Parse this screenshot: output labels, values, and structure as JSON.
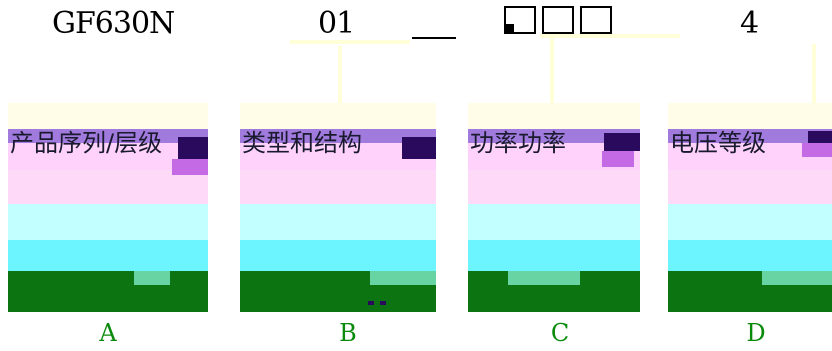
{
  "header": {
    "codes": [
      "GF630N",
      "01",
      "4"
    ]
  },
  "panels": [
    {
      "label": "A",
      "caption": "产品序列/层级"
    },
    {
      "label": "B",
      "caption": "类型和结构"
    },
    {
      "label": "C",
      "caption": "功率功率"
    },
    {
      "label": "D",
      "caption": "电压等级"
    }
  ]
}
